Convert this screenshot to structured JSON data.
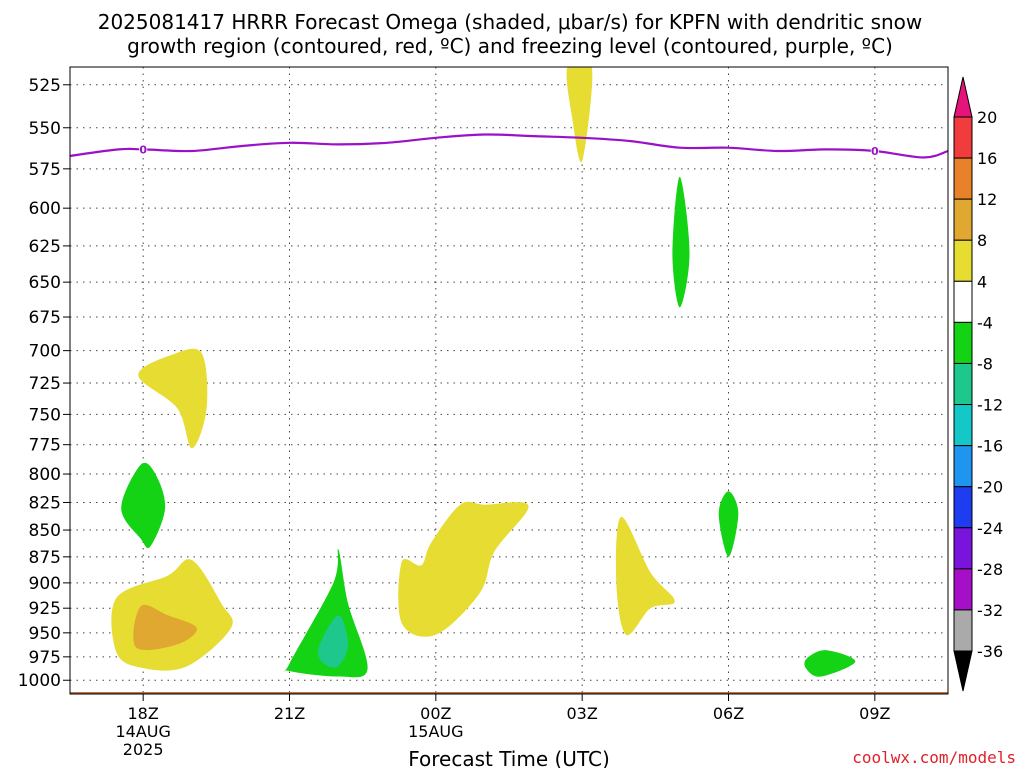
{
  "chart_data": {
    "type": "heatmap",
    "title_line1": "2025081417 HRRR Forecast Omega (shaded, μbar/s) for KPFN with dendritic snow",
    "title_line2": "growth region (contoured, red, ºC) and freezing level (contoured, purple, ºC)",
    "xlabel": "Forecast Time (UTC)",
    "ylabel": "",
    "y_scale": "log",
    "y_reversed": true,
    "ylim": [
      1015,
      515
    ],
    "y_ticks": [
      525,
      550,
      575,
      600,
      625,
      650,
      675,
      700,
      725,
      750,
      775,
      800,
      825,
      850,
      875,
      900,
      925,
      950,
      975,
      1000
    ],
    "xlim": [
      16.5,
      34.5
    ],
    "x_ticks": [
      {
        "hour": 18,
        "label": "18Z",
        "sub1": "14AUG",
        "sub2": "2025"
      },
      {
        "hour": 21,
        "label": "21Z",
        "sub1": "",
        "sub2": ""
      },
      {
        "hour": 24,
        "label": "00Z",
        "sub1": "15AUG",
        "sub2": ""
      },
      {
        "hour": 27,
        "label": "03Z",
        "sub1": "",
        "sub2": ""
      },
      {
        "hour": 30,
        "label": "06Z",
        "sub1": "",
        "sub2": ""
      },
      {
        "hour": 33,
        "label": "09Z",
        "sub1": "",
        "sub2": ""
      }
    ],
    "grid": true,
    "colorbar": {
      "labels": [
        "20",
        "16",
        "12",
        "8",
        "4",
        "-4",
        "-8",
        "-12",
        "-16",
        "-20",
        "-24",
        "-28",
        "-32",
        "-36"
      ],
      "bands": [
        {
          "from": 16,
          "to": 20,
          "color": "#f03c3c"
        },
        {
          "from": 12,
          "to": 16,
          "color": "#e8822a"
        },
        {
          "from": 8,
          "to": 12,
          "color": "#e0a830"
        },
        {
          "from": 4,
          "to": 8,
          "color": "#e6dc32"
        },
        {
          "from": -4,
          "to": 4,
          "color": "#ffffff"
        },
        {
          "from": -8,
          "to": -4,
          "color": "#14d214"
        },
        {
          "from": -12,
          "to": -8,
          "color": "#1ec88c"
        },
        {
          "from": -16,
          "to": -12,
          "color": "#14c8c8"
        },
        {
          "from": -20,
          "to": -16,
          "color": "#1e96f0"
        },
        {
          "from": -24,
          "to": -20,
          "color": "#1e3cf0"
        },
        {
          "from": -28,
          "to": -24,
          "color": "#7814dc"
        },
        {
          "from": -32,
          "to": -28,
          "color": "#a50fc8"
        },
        {
          "from": -36,
          "to": -32,
          "color": "#aaaaaa"
        }
      ],
      "top_arrow_color": "#e6147a",
      "bottom_arrow_color": "#000000"
    },
    "freezing_level": {
      "color": "#9a11c8",
      "label": "0",
      "label_hours": [
        18,
        33
      ],
      "points": [
        [
          16.5,
          567
        ],
        [
          17.5,
          563
        ],
        [
          18,
          563
        ],
        [
          19,
          564
        ],
        [
          20,
          561
        ],
        [
          21,
          559
        ],
        [
          22,
          560
        ],
        [
          23,
          559
        ],
        [
          24,
          556
        ],
        [
          25,
          554
        ],
        [
          26,
          555
        ],
        [
          27,
          556
        ],
        [
          28,
          558
        ],
        [
          29,
          562
        ],
        [
          30,
          562
        ],
        [
          31,
          564
        ],
        [
          32,
          563
        ],
        [
          33,
          564
        ],
        [
          34,
          568
        ],
        [
          34.5,
          564
        ]
      ]
    },
    "omega_regions": [
      {
        "color": "#e6dc32",
        "points": [
          [
            26.7,
            515
          ],
          [
            27.2,
            515
          ],
          [
            27.0,
            570
          ],
          [
            26.8,
            545
          ]
        ]
      },
      {
        "color": "#14d214",
        "points": [
          [
            29.0,
            580
          ],
          [
            29.2,
            630
          ],
          [
            29.0,
            668
          ],
          [
            28.85,
            630
          ]
        ]
      },
      {
        "color": "#e6dc32",
        "points": [
          [
            17.9,
            719
          ],
          [
            18.6,
            703
          ],
          [
            19.2,
            702
          ],
          [
            19.3,
            745
          ],
          [
            19.0,
            778
          ],
          [
            18.7,
            745
          ]
        ]
      },
      {
        "color": "#14d214",
        "points": [
          [
            17.95,
            792
          ],
          [
            18.25,
            800
          ],
          [
            18.45,
            830
          ],
          [
            18.15,
            865
          ],
          [
            17.95,
            858
          ],
          [
            17.55,
            830
          ]
        ]
      },
      {
        "color": "#e6dc32",
        "points": [
          [
            17.45,
            915
          ],
          [
            18.5,
            893
          ],
          [
            19.0,
            878
          ],
          [
            19.6,
            920
          ],
          [
            19.8,
            945
          ],
          [
            18.9,
            985
          ],
          [
            18.0,
            987
          ],
          [
            17.45,
            970
          ]
        ]
      },
      {
        "color": "#e0a830",
        "points": [
          [
            17.95,
            923
          ],
          [
            18.5,
            932
          ],
          [
            19.1,
            945
          ],
          [
            18.7,
            962
          ],
          [
            17.85,
            965
          ]
        ]
      },
      {
        "color": "#14d214",
        "points": [
          [
            21.0,
            982
          ],
          [
            21.9,
            900
          ],
          [
            22.0,
            868
          ],
          [
            22.2,
            920
          ],
          [
            22.6,
            988
          ],
          [
            22.0,
            996
          ],
          [
            21.0,
            990
          ]
        ]
      },
      {
        "color": "#1ec88c",
        "points": [
          [
            21.6,
            965
          ],
          [
            22.0,
            932
          ],
          [
            22.2,
            962
          ],
          [
            22.0,
            985
          ],
          [
            21.7,
            982
          ]
        ]
      },
      {
        "color": "#e6dc32",
        "points": [
          [
            23.7,
            883
          ],
          [
            23.9,
            862
          ],
          [
            24.5,
            827
          ],
          [
            25.0,
            827
          ],
          [
            25.9,
            828
          ],
          [
            25.2,
            870
          ],
          [
            24.9,
            910
          ],
          [
            24.0,
            952
          ],
          [
            23.3,
            940
          ],
          [
            23.3,
            880
          ]
        ]
      },
      {
        "color": "#e6dc32",
        "points": [
          [
            27.8,
            838
          ],
          [
            28.4,
            890
          ],
          [
            28.9,
            918
          ],
          [
            28.4,
            925
          ],
          [
            27.9,
            952
          ],
          [
            27.7,
            900
          ]
        ]
      },
      {
        "color": "#14d214",
        "points": [
          [
            30.0,
            815
          ],
          [
            30.2,
            835
          ],
          [
            30.0,
            875
          ],
          [
            29.8,
            835
          ]
        ]
      },
      {
        "color": "#14d214",
        "points": [
          [
            31.6,
            977
          ],
          [
            32.0,
            968
          ],
          [
            32.6,
            980
          ],
          [
            31.9,
            996
          ],
          [
            31.6,
            988
          ]
        ]
      }
    ],
    "ground_band": {
      "color": "#a6582a",
      "pressure": 1013
    }
  },
  "credit": "coolwx.com/models"
}
